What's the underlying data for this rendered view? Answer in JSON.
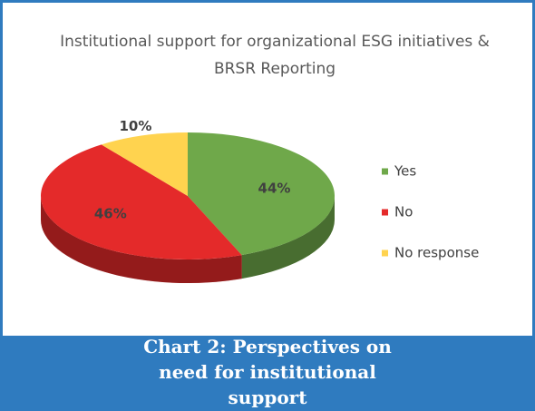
{
  "chart_data": {
    "type": "pie",
    "title": "Institutional support for organizational ESG initiatives & BRSR Reporting",
    "categories": [
      "Yes",
      "No",
      "No response"
    ],
    "values": [
      44,
      46,
      10
    ],
    "value_labels": [
      "44%",
      "46%",
      "10%"
    ],
    "colors": [
      "#6fa84a",
      "#e42a2a",
      "#ffd34f"
    ],
    "legend": "right"
  },
  "caption": "Chart 2: Perspectives on need for institutional support"
}
